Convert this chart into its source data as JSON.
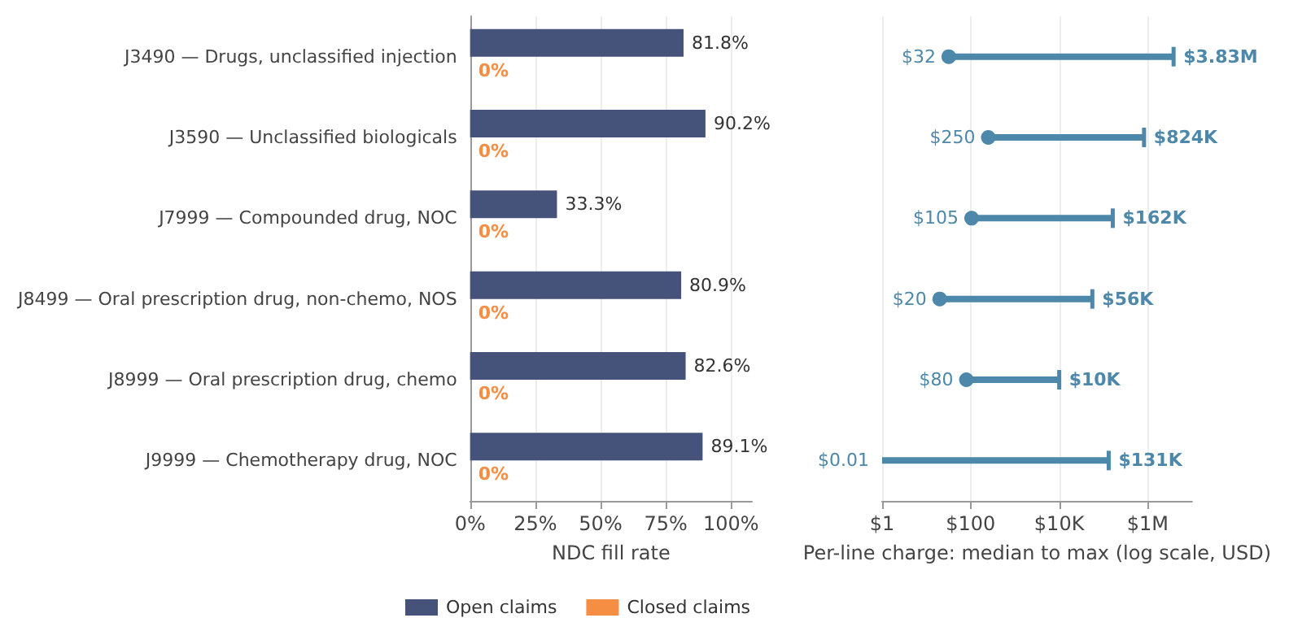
{
  "chart_data": [
    {
      "type": "bar",
      "orientation": "horizontal",
      "categories": [
        "J3490 — Drugs, unclassified injection",
        "J3590 — Unclassified biologicals",
        "J7999 — Compounded drug, NOC",
        "J8499 — Oral prescription drug, non-chemo, NOS",
        "J8999 — Oral prescription drug, chemo",
        "J9999 — Chemotherapy drug, NOC"
      ],
      "series": [
        {
          "name": "Open claims",
          "color": "#45527a",
          "values": [
            81.8,
            90.2,
            33.3,
            80.9,
            82.6,
            89.1
          ],
          "value_labels": [
            "81.8%",
            "90.2%",
            "33.3%",
            "80.9%",
            "82.6%",
            "89.1%"
          ]
        },
        {
          "name": "Closed claims",
          "color": "#f58d42",
          "values": [
            0,
            0,
            0,
            0,
            0,
            0
          ],
          "value_labels": [
            "0%",
            "0%",
            "0%",
            "0%",
            "0%",
            "0%"
          ]
        }
      ],
      "xlabel": "NDC fill rate",
      "xlim": [
        0,
        108
      ],
      "xticks": [
        {
          "value": 0,
          "label": "0%"
        },
        {
          "value": 25,
          "label": "25%"
        },
        {
          "value": 50,
          "label": "50%"
        },
        {
          "value": 75,
          "label": "75%"
        },
        {
          "value": 100,
          "label": "100%"
        }
      ],
      "grid": "x",
      "legend": "bottom"
    },
    {
      "type": "bar",
      "orientation": "horizontal",
      "categories": [
        null,
        null,
        null,
        null,
        null,
        null
      ],
      "log": "x",
      "marker": "circle",
      "series": [
        {
          "color": "#4d88aa",
          "base": [
            32,
            250,
            105,
            20,
            80,
            null
          ],
          "values": [
            3829968,
            823750,
            161895,
            55980,
            9920,
            130999
          ],
          "value_labels": [
            "$3.83M",
            "$824K",
            "$162K",
            "$56K",
            "$10K",
            "$131K"
          ]
        }
      ],
      "annotations": [
        {
          "text": "$32",
          "x": 32
        },
        {
          "text": "$250",
          "x": 250
        },
        {
          "text": "$105",
          "x": 105
        },
        {
          "text": "$20",
          "x": 20
        },
        {
          "text": "$80",
          "x": 80
        },
        "$0.01"
      ],
      "xlabel": "Per-line charge: median to max (log scale, USD)",
      "xlim": [
        1,
        10000000
      ],
      "xticks": [
        {
          "value": 1,
          "label": "$1"
        },
        {
          "value": 100,
          "label": "$100"
        },
        {
          "value": 10000,
          "label": "$10K"
        },
        {
          "value": 1000000,
          "label": "$1M"
        }
      ],
      "grid": "x"
    }
  ]
}
